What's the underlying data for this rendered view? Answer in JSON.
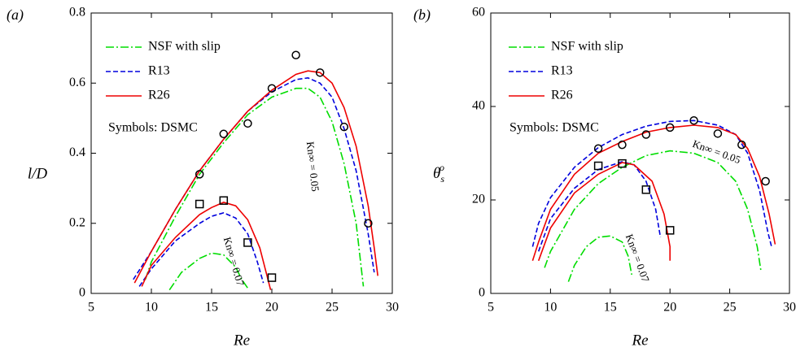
{
  "chart_data": [
    {
      "type": "line",
      "panel_label": "(a)",
      "xlabel": "Re",
      "ylabel": "l/D",
      "xlim": [
        5,
        30
      ],
      "xticks": [
        5,
        10,
        15,
        20,
        25,
        30
      ],
      "ylim": [
        0,
        0.8
      ],
      "yticks": [
        0,
        0.2,
        0.4,
        0.6,
        0.8
      ],
      "series": [
        {
          "name": "NSF with slip",
          "color": "#00dd00",
          "dash": "dashdot",
          "curves": [
            {
              "x": [
                9.5,
                10,
                12,
                14,
                16,
                18,
                20,
                22,
                23,
                24,
                25,
                26,
                27,
                27.5,
                27.6
              ],
              "values": [
                0.04,
                0.09,
                0.22,
                0.34,
                0.43,
                0.51,
                0.56,
                0.585,
                0.585,
                0.56,
                0.49,
                0.37,
                0.2,
                0.05,
                0.02
              ]
            },
            {
              "x": [
                11.5,
                12.5,
                14,
                15,
                16,
                17,
                17.5,
                18
              ],
              "values": [
                0.01,
                0.06,
                0.1,
                0.115,
                0.11,
                0.075,
                0.04,
                0.015
              ]
            }
          ]
        },
        {
          "name": "R13",
          "color": "#0000dd",
          "dash": "dashed",
          "curves": [
            {
              "x": [
                8.5,
                10,
                12,
                14,
                16,
                18,
                20,
                22,
                23,
                24,
                25,
                26,
                27,
                28,
                28.5
              ],
              "values": [
                0.04,
                0.12,
                0.24,
                0.35,
                0.44,
                0.52,
                0.575,
                0.61,
                0.615,
                0.6,
                0.56,
                0.47,
                0.35,
                0.17,
                0.06
              ]
            },
            {
              "x": [
                9,
                10,
                12,
                14,
                15,
                16,
                17,
                18,
                18.8,
                19.3
              ],
              "values": [
                0.02,
                0.07,
                0.15,
                0.2,
                0.22,
                0.23,
                0.215,
                0.17,
                0.09,
                0.03
              ]
            }
          ]
        },
        {
          "name": "R26",
          "color": "#ee0000",
          "dash": "solid",
          "curves": [
            {
              "x": [
                8.6,
                10,
                12,
                14,
                16,
                18,
                20,
                22,
                23,
                24,
                25,
                26,
                27,
                28,
                28.5,
                28.8
              ],
              "values": [
                0.03,
                0.12,
                0.24,
                0.35,
                0.44,
                0.52,
                0.58,
                0.625,
                0.635,
                0.63,
                0.6,
                0.53,
                0.42,
                0.25,
                0.13,
                0.05
              ]
            },
            {
              "x": [
                9.2,
                10,
                12,
                14,
                15,
                16,
                17,
                18,
                19,
                19.6,
                19.9
              ],
              "values": [
                0.02,
                0.08,
                0.16,
                0.225,
                0.245,
                0.26,
                0.25,
                0.21,
                0.13,
                0.05,
                0.01
              ]
            }
          ]
        }
      ],
      "markers_label": "Symbols: DSMC",
      "markers": [
        {
          "shape": "circle",
          "x": [
            14,
            16,
            18,
            20,
            22,
            24,
            26,
            28
          ],
          "values": [
            0.34,
            0.455,
            0.485,
            0.585,
            0.68,
            0.63,
            0.475,
            0.2
          ]
        },
        {
          "shape": "square",
          "x": [
            14,
            16,
            18,
            20
          ],
          "values": [
            0.255,
            0.265,
            0.145,
            0.045
          ]
        }
      ],
      "annotations": [
        "Kn∞ = 0.05",
        "Kn∞ = 0.07"
      ]
    },
    {
      "type": "line",
      "panel_label": "(b)",
      "xlabel": "Re",
      "ylabel": {
        "base": "θ",
        "sub": "s",
        "sup": "o"
      },
      "xlim": [
        5,
        30
      ],
      "xticks": [
        5,
        10,
        15,
        20,
        25,
        30
      ],
      "ylim": [
        0,
        60
      ],
      "yticks": [
        0,
        20,
        40,
        60
      ],
      "series": [
        {
          "name": "NSF with slip",
          "color": "#00dd00",
          "dash": "dashdot",
          "curves": [
            {
              "x": [
                9.5,
                10,
                12,
                14,
                16,
                18,
                20,
                22,
                24,
                25.5,
                26.5,
                27.3,
                27.6
              ],
              "values": [
                5.5,
                9,
                18,
                23.5,
                27,
                29.5,
                30.5,
                30,
                28,
                24,
                18,
                10,
                5
              ]
            },
            {
              "x": [
                11.5,
                12,
                13,
                14,
                15,
                16,
                16.5,
                16.8
              ],
              "values": [
                2.5,
                6,
                10,
                12,
                12.3,
                11,
                8,
                4
              ]
            }
          ]
        },
        {
          "name": "R13",
          "color": "#0000dd",
          "dash": "dashed",
          "curves": [
            {
              "x": [
                8.5,
                9,
                10,
                12,
                14,
                16,
                18,
                20,
                22,
                24,
                25.5,
                26.5,
                27.5,
                28.2,
                28.5
              ],
              "values": [
                10,
                15,
                20.5,
                27,
                31.2,
                34,
                35.8,
                36.8,
                37,
                36,
                34,
                30,
                22,
                13,
                10
              ]
            },
            {
              "x": [
                9,
                10,
                12,
                14,
                16,
                17,
                18,
                18.8,
                19.2
              ],
              "values": [
                9,
                16,
                22.5,
                26.5,
                28.2,
                27.5,
                24,
                18,
                12
              ]
            }
          ]
        },
        {
          "name": "R26",
          "color": "#ee0000",
          "dash": "solid",
          "curves": [
            {
              "x": [
                8.5,
                9,
                10,
                12,
                14,
                16,
                18,
                20,
                22,
                24,
                25.5,
                26.5,
                27.5,
                28.3,
                28.8
              ],
              "values": [
                7,
                11,
                18,
                25.5,
                30,
                32.5,
                34.5,
                35.5,
                36,
                35.5,
                34,
                31,
                25,
                17,
                10.5
              ]
            },
            {
              "x": [
                9,
                10,
                12,
                14,
                16,
                17,
                18.5,
                19.5,
                20,
                20
              ],
              "values": [
                7,
                14,
                21.5,
                25.5,
                28,
                27.5,
                24,
                17,
                10,
                7
              ]
            }
          ]
        }
      ],
      "markers_label": "Symbols: DSMC",
      "markers": [
        {
          "shape": "circle",
          "x": [
            14,
            16,
            18,
            20,
            22,
            24,
            26,
            28
          ],
          "values": [
            31,
            31.8,
            34,
            35.5,
            37,
            34.2,
            31.8,
            24
          ]
        },
        {
          "shape": "square",
          "x": [
            14,
            16,
            18,
            20
          ],
          "values": [
            27.3,
            27.8,
            22.2,
            13.5
          ]
        }
      ],
      "annotations": [
        "Kn∞ = 0.05",
        "Kn∞ = 0.07"
      ]
    }
  ]
}
